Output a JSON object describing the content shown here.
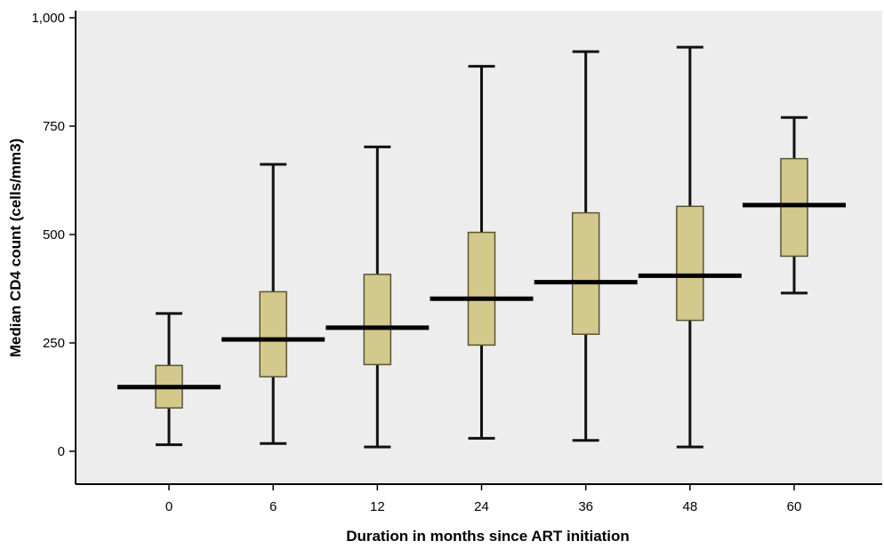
{
  "chart_data": {
    "type": "boxplot",
    "xlabel": "Duration in months since ART initiation",
    "ylabel": "Median CD4 count (cells/mm3)",
    "categories": [
      "0",
      "6",
      "12",
      "24",
      "36",
      "48",
      "60"
    ],
    "ylim": [
      0,
      1000
    ],
    "yticks": [
      0,
      250,
      500,
      750,
      1000
    ],
    "ytick_labels": [
      "0",
      "250",
      "500",
      "750",
      "1,000"
    ],
    "grid": false,
    "boxes": [
      {
        "category": "0",
        "min": 15,
        "q1": 100,
        "median": 148,
        "q3": 198,
        "max": 318
      },
      {
        "category": "6",
        "min": 18,
        "q1": 172,
        "median": 258,
        "q3": 368,
        "max": 662
      },
      {
        "category": "12",
        "min": 10,
        "q1": 200,
        "median": 285,
        "q3": 408,
        "max": 702
      },
      {
        "category": "24",
        "min": 30,
        "q1": 245,
        "median": 352,
        "q3": 505,
        "max": 888
      },
      {
        "category": "36",
        "min": 25,
        "q1": 270,
        "median": 390,
        "q3": 550,
        "max": 922
      },
      {
        "category": "48",
        "min": 10,
        "q1": 302,
        "median": 405,
        "q3": 565,
        "max": 932
      },
      {
        "category": "60",
        "min": 365,
        "q1": 450,
        "median": 568,
        "q3": 675,
        "max": 770
      }
    ],
    "colors": {
      "plot_background": "#ededed",
      "box_fill": "#d3c98c",
      "box_stroke": "#5a5530",
      "whisker": "#111111",
      "median": "#000000",
      "axis": "#000000"
    }
  }
}
